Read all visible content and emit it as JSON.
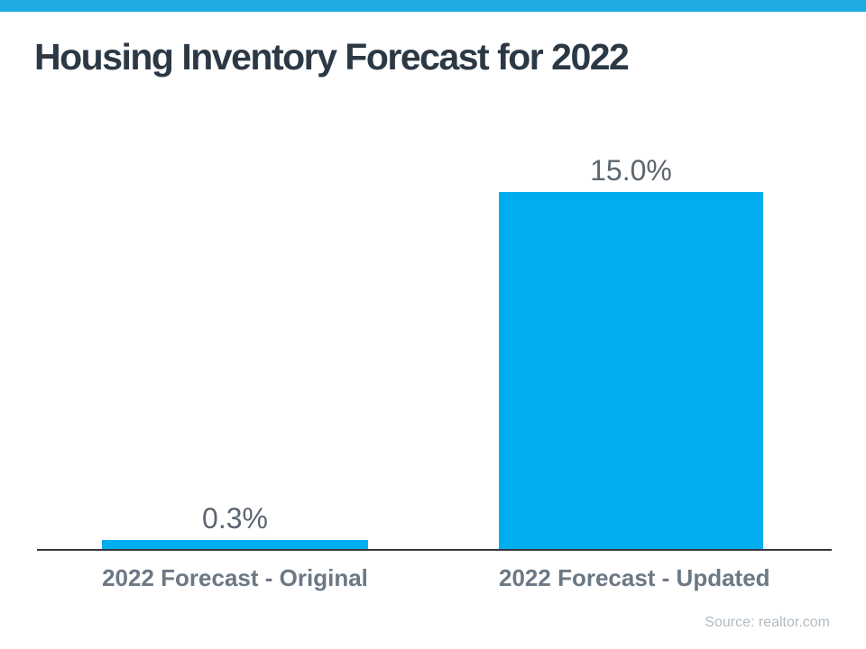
{
  "page": {
    "background_color": "#FFFFFF",
    "top_strip_color": "#1FAAE3"
  },
  "header": {
    "title": "Housing Inventory Forecast for 2022",
    "title_color": "#2C3945"
  },
  "chart_data": {
    "type": "bar",
    "title": "Housing Inventory Forecast for 2022",
    "categories": [
      "2022 Forecast - Original",
      "2022 Forecast - Updated"
    ],
    "values": [
      0.3,
      15.0
    ],
    "value_labels": [
      "0.3%",
      "15.0%"
    ],
    "xlabel": "",
    "ylabel": "",
    "ylim": [
      0,
      15
    ],
    "grid": false,
    "legend": false,
    "bar_color": "#00AEEF",
    "value_label_color": "#5C6670",
    "category_label_color": "#6C7884",
    "axis_line_color": "#30373D"
  },
  "footer": {
    "source_label": "Source: realtor.com",
    "source_color": "#B2BAC2"
  }
}
